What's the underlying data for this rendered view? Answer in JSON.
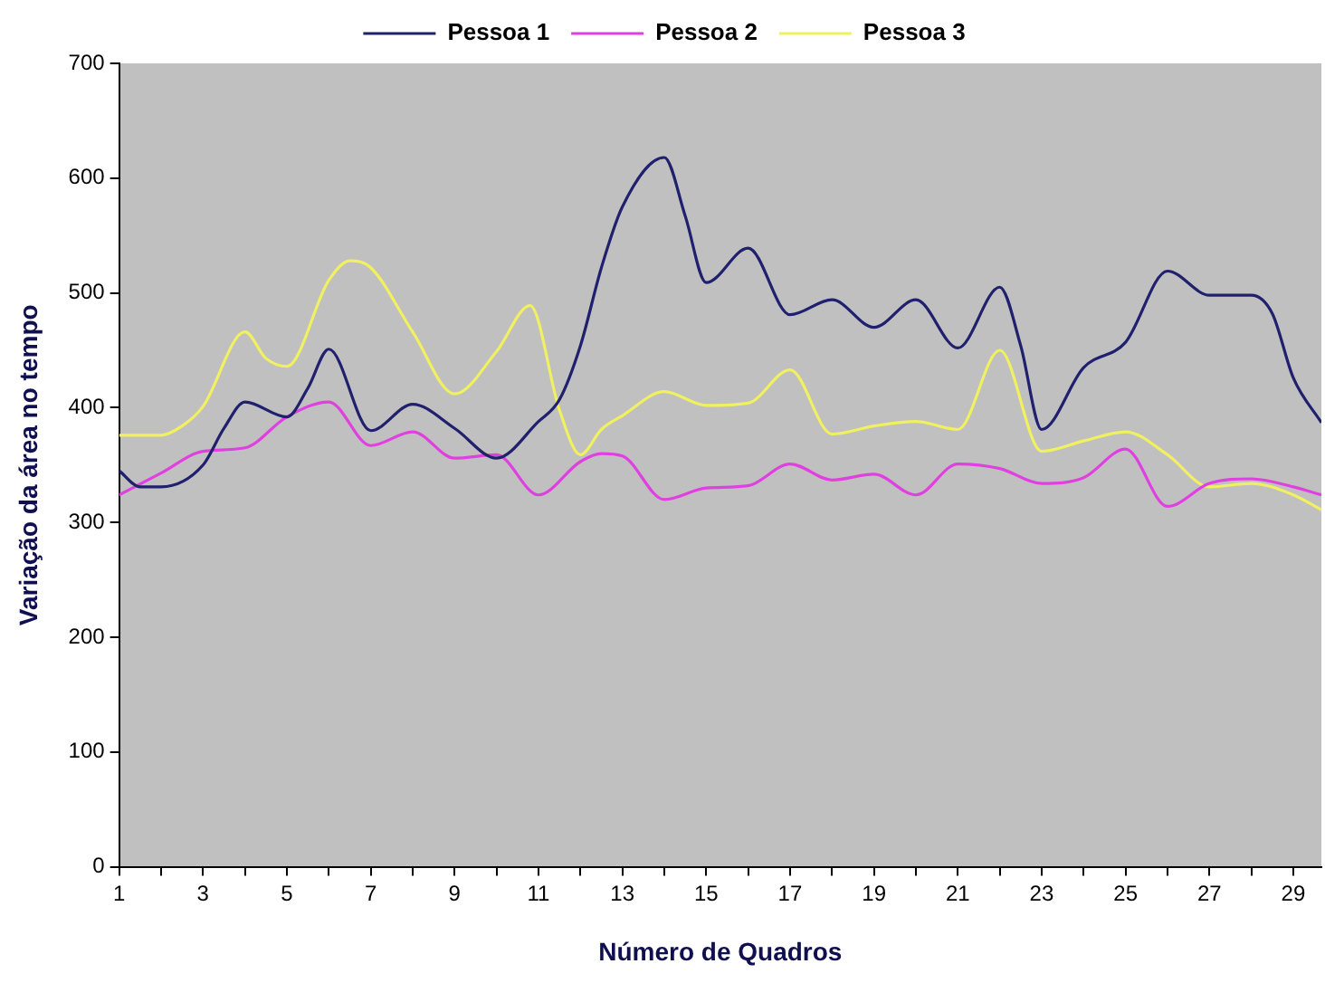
{
  "chart_data": {
    "type": "line",
    "xlabel": "Número de Quadros",
    "ylabel": "Variação da área no tempo",
    "xlim": [
      1,
      29.67
    ],
    "xticks": [
      1,
      {
        "value": 2,
        "label": null
      },
      3,
      {
        "value": 4,
        "label": null
      },
      5,
      {
        "value": 6,
        "label": null
      },
      7,
      {
        "value": 8,
        "label": null
      },
      9,
      {
        "value": 10,
        "label": null
      },
      11,
      {
        "value": 12,
        "label": null
      },
      13,
      {
        "value": 14,
        "label": null
      },
      15,
      {
        "value": 16,
        "label": null
      },
      17,
      {
        "value": 18,
        "label": null
      },
      19,
      {
        "value": 20,
        "label": null
      },
      21,
      {
        "value": 22,
        "label": null
      },
      23,
      {
        "value": 24,
        "label": null
      },
      25,
      {
        "value": 26,
        "label": null
      },
      27,
      {
        "value": 28,
        "label": null
      },
      29
    ],
    "ylim": [
      0,
      700
    ],
    "yticks": [
      0,
      100,
      200,
      300,
      400,
      500,
      600,
      700
    ],
    "grid": false,
    "legend": "top",
    "marker": "none",
    "line_style": "solid",
    "series": [
      {
        "name": "Pessoa 1",
        "color": "#20206e",
        "x": [
          1,
          1.5,
          2,
          3,
          3.5,
          4,
          5,
          5.5,
          6,
          7,
          8,
          9,
          10,
          11,
          11.5,
          12,
          12.5,
          13,
          14,
          14.5,
          15,
          16,
          17,
          18,
          19,
          20,
          21,
          22,
          22.5,
          23,
          24,
          25,
          26,
          27,
          28,
          28.5,
          29,
          29.67
        ],
        "values": [
          345,
          331,
          331,
          350,
          382,
          405,
          392,
          417,
          451,
          380,
          403,
          382,
          356,
          388,
          407,
          454,
          522,
          575,
          618,
          567,
          509,
          539,
          481,
          494,
          470,
          494,
          452,
          505,
          454,
          381,
          435,
          457,
          519,
          498,
          498,
          482,
          426,
          387
        ]
      },
      {
        "name": "Pessoa 2",
        "color": "#e040e0",
        "x": [
          1,
          2,
          3,
          4,
          5,
          6,
          7,
          8,
          9,
          10,
          11,
          12,
          12.5,
          13,
          14,
          15,
          16,
          17,
          18,
          19,
          20,
          21,
          22,
          23,
          24,
          25,
          26,
          27,
          28,
          29,
          29.67
        ],
        "values": [
          324,
          343,
          362,
          365,
          392,
          405,
          367,
          379,
          356,
          359,
          324,
          353,
          360,
          358,
          320,
          330,
          332,
          351,
          337,
          342,
          324,
          351,
          347,
          334,
          339,
          364,
          314,
          334,
          338,
          331,
          324
        ]
      },
      {
        "name": "Pessoa 3",
        "color": "#f0f060",
        "x": [
          1,
          2,
          2.5,
          3,
          4,
          4.5,
          5,
          6,
          6.5,
          7,
          8,
          9,
          10,
          10.8,
          11.5,
          12,
          12.5,
          13,
          14,
          15,
          16,
          17,
          18,
          19,
          20,
          21,
          22,
          23,
          24,
          25,
          26,
          27,
          28,
          29,
          29.67
        ],
        "values": [
          376,
          376,
          384,
          401,
          466,
          443,
          436,
          511,
          528,
          522,
          466,
          412,
          449,
          489,
          398,
          359,
          381,
          393,
          414,
          402,
          404,
          433,
          377,
          384,
          388,
          381,
          450,
          362,
          371,
          379,
          359,
          331,
          334,
          324,
          311
        ]
      }
    ]
  }
}
